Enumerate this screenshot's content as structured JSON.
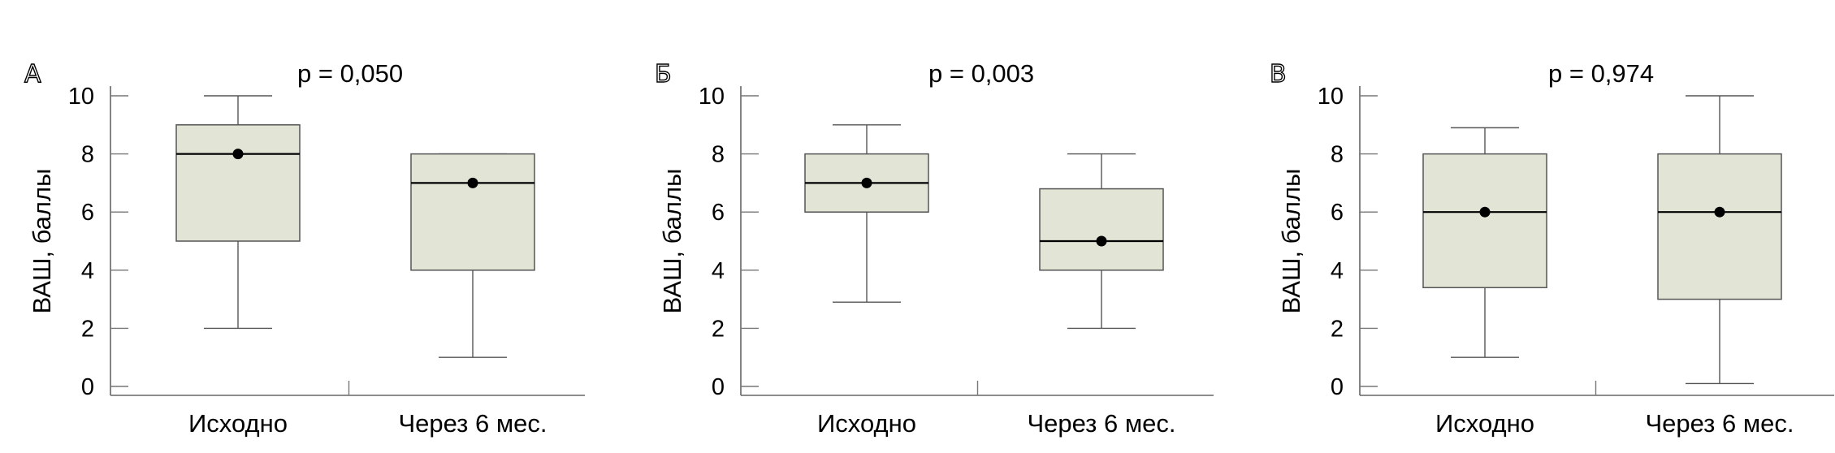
{
  "chart_data": [
    {
      "type": "box",
      "panel_label": "А",
      "title": "p = 0,050",
      "ylabel": "ВАШ, баллы",
      "ylim": [
        0,
        10
      ],
      "yticks": [
        0,
        2,
        4,
        6,
        8,
        10
      ],
      "categories": [
        "Исходно",
        "Через 6 мес."
      ],
      "boxes": [
        {
          "min": 2,
          "q1": 5,
          "median": 8,
          "q3": 9,
          "max": 10,
          "mean": 8
        },
        {
          "min": 1,
          "q1": 4,
          "median": 7,
          "q3": 8,
          "max": 8,
          "mean": 7
        }
      ],
      "colors": {
        "box_fill": "#e2e5d6",
        "box_stroke": "#555555",
        "median": "#000000",
        "mean": "#000000"
      }
    },
    {
      "type": "box",
      "panel_label": "Б",
      "title": "p = 0,003",
      "ylabel": "ВАШ, баллы",
      "ylim": [
        0,
        10
      ],
      "yticks": [
        0,
        2,
        4,
        6,
        8,
        10
      ],
      "categories": [
        "Исходно",
        "Через 6 мес."
      ],
      "boxes": [
        {
          "min": 2.9,
          "q1": 6,
          "median": 7,
          "q3": 8,
          "max": 9,
          "mean": 7
        },
        {
          "min": 2,
          "q1": 4,
          "median": 5,
          "q3": 6.8,
          "max": 8,
          "mean": 5
        }
      ],
      "colors": {
        "box_fill": "#e2e5d6",
        "box_stroke": "#555555",
        "median": "#000000",
        "mean": "#000000"
      }
    },
    {
      "type": "box",
      "panel_label": "В",
      "title": "p = 0,974",
      "ylabel": "ВАШ, баллы",
      "ylim": [
        0,
        10
      ],
      "yticks": [
        0,
        2,
        4,
        6,
        8,
        10
      ],
      "categories": [
        "Исходно",
        "Через 6 мес."
      ],
      "boxes": [
        {
          "min": 1,
          "q1": 3.4,
          "median": 6,
          "q3": 8,
          "max": 8.9,
          "mean": 6
        },
        {
          "min": 0.1,
          "q1": 3,
          "median": 6,
          "q3": 8,
          "max": 10,
          "mean": 6
        }
      ],
      "colors": {
        "box_fill": "#e2e5d6",
        "box_stroke": "#555555",
        "median": "#000000",
        "mean": "#000000"
      }
    }
  ]
}
